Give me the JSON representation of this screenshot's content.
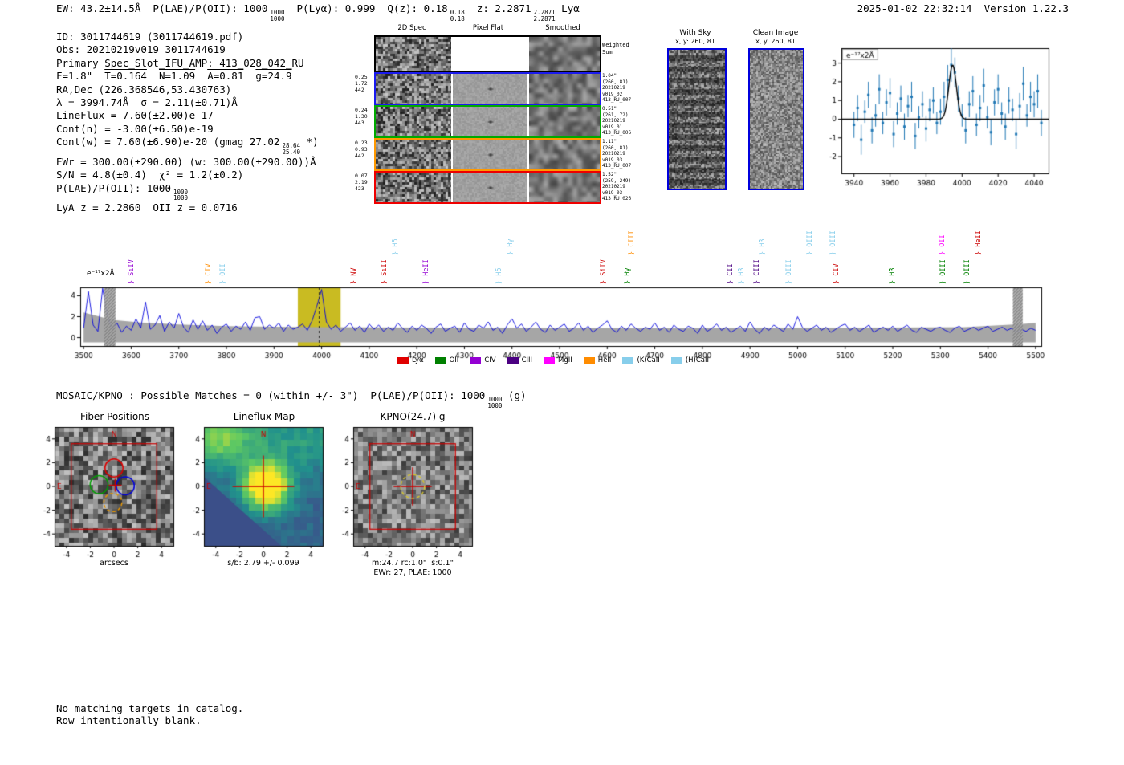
{
  "header": {
    "ew": "EW: 43.2±14.5Å  ",
    "plae_label": "P(LAE)/P(OII): 1000",
    "plae_hi": "1000",
    "plae_lo": "1000",
    "plya": "  P(Lyα): 0.999  ",
    "qz": "Q(z): 0.18",
    "qz_hi": "0.18",
    "qz_lo": "0.18",
    "z": "  z: 2.2871",
    "z_hi": "2.2871",
    "z_lo": "2.2871",
    "line_type": " Lyα",
    "timestamp": "2025-01-02 22:32:14",
    "version": "Version 1.22.3"
  },
  "info": {
    "lines": [
      {
        "text": "ID: 3011744619 (3011744619.pdf)"
      },
      {
        "text": "Obs: 20210219v019_3011744619"
      },
      {
        "text": "Primary Spec_Slot_IFU_AMP: 413_028_042_RU"
      },
      {
        "parts": [
          {
            "t": "F=1.8\"  "
          },
          {
            "t": "T=0.164",
            "over": true
          },
          {
            "t": "  "
          },
          {
            "t": "N=1.09",
            "over": true
          },
          {
            "t": "  "
          },
          {
            "t": "A=0.81",
            "over": true
          },
          {
            "t": "  "
          },
          {
            "t": "g=24.9",
            "over": true
          }
        ]
      },
      {
        "text": "RA,Dec (226.368546,53.430763)"
      },
      {
        "text": "λ = 3994.74Å  σ = 2.11(±0.71)Å"
      },
      {
        "text": "LineFlux = 7.60(±2.00)e-17"
      },
      {
        "text": "Cont(n) = -3.00(±6.50)e-19"
      },
      {
        "pre": "Cont(w) = 7.60(±6.90)e-20 (gmag 27.02",
        "sup": "28.64",
        "sub": "25.40",
        "post": " *)"
      },
      {
        "text": "EWr = 300.00(±290.00) (w: 300.00(±290.00))Å"
      },
      {
        "text": "S/N = 4.8(±0.4)  χ² = 1.2(±0.2)"
      },
      {
        "pre": "P(LAE)/P(OII): 1000",
        "sup": "1000",
        "sub": "1000",
        "post": ""
      },
      {
        "text": "LyA z = 2.2860  OII z = 0.0716"
      }
    ]
  },
  "cutouts": {
    "col_titles": [
      "2D Spec",
      "Pixel Flat",
      "Smoothed"
    ],
    "weighted_label": [
      "Weighted",
      "Sum"
    ],
    "rows": [
      {
        "left": [
          "0.25",
          "1.72",
          "442"
        ],
        "right": [
          "1.04\"",
          "(260, 81)",
          "20210219",
          "v019_02",
          "413_RU_007"
        ],
        "color": "#1a1aee"
      },
      {
        "left": [
          "0.24",
          "1.30",
          "443"
        ],
        "right": [
          "0.51\"",
          "(261, 72)",
          "20210219",
          "v019_01",
          "413_RU_006"
        ],
        "color": "#00aa00"
      },
      {
        "left": [
          "0.23",
          "0.93",
          "442"
        ],
        "right": [
          "1.11\"",
          "(260, 81)",
          "20210219",
          "v019_03",
          "413_RU_007"
        ],
        "color": "#ff9900"
      },
      {
        "left": [
          "0.07",
          "2.19",
          "423"
        ],
        "right": [
          "1.52\"",
          "(259, 249)",
          "20210219",
          "v019_03",
          "413_RU_026"
        ],
        "color": "#ee0000"
      }
    ]
  },
  "with_sky": {
    "title": "With Sky",
    "subtitle": "x, y: 260, 81"
  },
  "clean": {
    "title": "Clean Image",
    "subtitle": "x, y: 260, 81"
  },
  "mosaic": {
    "pre": "MOSAIC/KPNO : Possible Matches = 0 (within +/- 3\")  P(LAE)/P(OII): 1000",
    "sup": "1000",
    "sub": "1000",
    "post": " (g)"
  },
  "footer": {
    "line1": "No matching targets in catalog.",
    "line2": "Row intentionally blank."
  },
  "chart_data": [
    {
      "id": "line_fit",
      "type": "scatter",
      "ylabel": "e⁻¹⁷x2Å",
      "xlim": [
        3933,
        4048
      ],
      "ylim": [
        -2.9,
        3.8
      ],
      "xticks": [
        3940,
        3960,
        3980,
        4000,
        4020,
        4040
      ],
      "yticks": [
        -2,
        -1,
        0,
        1,
        2,
        3
      ],
      "x_start": 3940,
      "x_step": 2,
      "y": [
        -0.3,
        0.6,
        -1.1,
        0.4,
        1.3,
        -0.6,
        0.2,
        1.6,
        -0.2,
        0.9,
        1.4,
        -0.8,
        0.3,
        1.1,
        -0.4,
        0.7,
        1.2,
        -0.9,
        0.1,
        0.8,
        -0.5,
        0.5,
        1.0,
        -0.2,
        0.4,
        1.2,
        2.1,
        2.9,
        2.5,
        1.1,
        0.2,
        -0.6,
        0.8,
        1.5,
        -0.3,
        0.6,
        1.8,
        0.1,
        -0.7,
        0.9,
        1.6,
        0.3,
        -0.4,
        1.0,
        0.5,
        -0.8,
        0.7,
        1.9,
        0.2,
        1.2,
        0.8,
        1.5,
        -0.2
      ],
      "yerr": [
        0.7,
        0.7,
        0.8,
        0.6,
        0.7,
        0.7,
        0.6,
        0.8,
        0.6,
        0.7,
        0.8,
        0.7,
        0.6,
        0.7,
        0.7,
        0.6,
        0.8,
        0.7,
        0.6,
        0.7,
        0.7,
        0.6,
        0.7,
        0.6,
        0.7,
        0.8,
        0.8,
        0.9,
        0.8,
        0.7,
        0.6,
        0.7,
        0.7,
        0.8,
        0.6,
        0.7,
        0.9,
        0.6,
        0.7,
        0.7,
        0.8,
        0.6,
        0.7,
        0.7,
        0.6,
        0.8,
        0.7,
        0.9,
        0.6,
        0.8,
        0.7,
        0.9,
        0.7
      ],
      "fit": {
        "center": 3994.74,
        "sigma": 2.11,
        "amp": 2.9,
        "baseline": 0
      },
      "point_color": "#1f77b4",
      "fit_color": "#000000"
    },
    {
      "id": "full_spectrum",
      "type": "line",
      "ylabel": "e⁻¹⁷x2Å",
      "xlim": [
        3493,
        5512
      ],
      "ylim": [
        -0.8,
        4.8
      ],
      "xticks": [
        3500,
        3600,
        3700,
        3800,
        3900,
        4000,
        4100,
        4200,
        4300,
        4400,
        4500,
        4600,
        4700,
        4800,
        4900,
        5000,
        5100,
        5200,
        5300,
        5400,
        5500
      ],
      "yticks": [
        0,
        2,
        4
      ],
      "x_start": 3500,
      "x_step": 10,
      "flux": [
        0.9,
        4.4,
        1.2,
        0.6,
        4.7,
        2.1,
        0.8,
        1.4,
        0.5,
        1.1,
        0.7,
        1.8,
        0.9,
        3.4,
        0.8,
        1.2,
        2.1,
        0.6,
        1.5,
        0.9,
        2.3,
        1.0,
        0.5,
        1.7,
        0.8,
        1.6,
        0.7,
        1.2,
        0.4,
        1.0,
        1.3,
        0.6,
        1.1,
        0.8,
        1.5,
        0.7,
        1.9,
        2.0,
        0.8,
        1.2,
        0.9,
        1.4,
        0.6,
        1.2,
        0.8,
        1.0,
        1.3,
        0.7,
        1.6,
        3.0,
        4.6,
        1.5,
        0.8,
        1.2,
        0.6,
        1.0,
        1.4,
        0.7,
        1.1,
        0.5,
        1.3,
        0.8,
        1.2,
        0.6,
        1.0,
        0.7,
        1.4,
        0.9,
        0.5,
        1.1,
        0.7,
        1.2,
        0.9,
        0.4,
        1.0,
        1.3,
        0.6,
        0.9,
        1.1,
        0.5,
        1.4,
        0.8,
        0.6,
        1.2,
        0.9,
        1.5,
        0.7,
        1.0,
        0.4,
        1.2,
        1.8,
        0.9,
        1.3,
        0.6,
        1.0,
        1.5,
        0.8,
        0.5,
        1.2,
        0.7,
        1.0,
        1.3,
        0.6,
        0.9,
        1.4,
        0.7,
        1.1,
        0.5,
        0.9,
        1.2,
        1.6,
        0.8,
        0.5,
        1.1,
        0.7,
        1.3,
        0.9,
        0.6,
        1.0,
        0.8,
        1.4,
        0.7,
        1.0,
        0.5,
        1.2,
        0.8,
        0.6,
        1.1,
        0.9,
        0.4,
        1.2,
        0.6,
        0.9,
        1.3,
        0.7,
        1.0,
        0.5,
        0.8,
        1.1,
        0.6,
        1.5,
        0.8,
        0.4,
        1.0,
        0.7,
        1.2,
        0.9,
        0.6,
        1.3,
        0.8,
        2.0,
        1.0,
        0.6,
        0.9,
        1.2,
        0.7,
        1.0,
        0.5,
        0.8,
        1.1,
        1.3,
        0.7,
        1.0,
        0.6,
        0.9,
        1.2,
        0.5,
        0.8,
        1.0,
        0.7,
        1.1,
        0.6,
        0.9,
        1.2,
        0.7,
        0.5,
        1.0,
        0.8,
        0.6,
        0.9,
        1.0,
        0.7,
        0.5,
        0.9,
        1.1,
        0.6,
        0.8,
        1.0,
        0.7,
        0.9,
        1.1,
        0.6,
        0.8,
        1.0,
        0.7,
        0.9,
        0.5,
        0.8,
        0.6,
        0.9,
        0.7
      ],
      "band_lo": -0.45,
      "band_hi": [
        {
          "x": 3500,
          "v": 2.4
        },
        {
          "x": 3560,
          "v": 1.7
        },
        {
          "x": 3620,
          "v": 1.45
        },
        {
          "x": 3700,
          "v": 1.25
        },
        {
          "x": 3800,
          "v": 1.1
        },
        {
          "x": 3900,
          "v": 1.05
        },
        {
          "x": 4000,
          "v": 1.0
        },
        {
          "x": 4300,
          "v": 0.95
        },
        {
          "x": 4700,
          "v": 0.9
        },
        {
          "x": 5100,
          "v": 0.95
        },
        {
          "x": 5350,
          "v": 1.0
        },
        {
          "x": 5470,
          "v": 1.3
        },
        {
          "x": 5500,
          "v": 1.4
        }
      ],
      "highlight_band": {
        "x0": 3950,
        "x1": 4040,
        "color": "#c9bb22"
      },
      "hatch_bands": [
        [
          3543,
          3567
        ],
        [
          5452,
          5473
        ]
      ],
      "marker_line": 3994.74,
      "line_color": "#0000dd",
      "legend": [
        {
          "label": "Lyα",
          "color": "#e00000"
        },
        {
          "label": "OII",
          "color": "#008000"
        },
        {
          "label": "CIV",
          "color": "#9400d3"
        },
        {
          "label": "CIII",
          "color": "#4b0082"
        },
        {
          "label": "MgII",
          "color": "#ff00ff"
        },
        {
          "label": "HeII",
          "color": "#ff8c00"
        },
        {
          "label": "(K)CaII",
          "color": "#87ceeb"
        },
        {
          "label": "(H)CaII",
          "color": "#87ceeb"
        }
      ],
      "line_labels": [
        {
          "t": "SiIV",
          "x": 3610,
          "c": "#9400d3",
          "lvl": 0
        },
        {
          "t": "CIV",
          "x": 3772,
          "c": "#ff8c00",
          "lvl": 0
        },
        {
          "t": "OII",
          "x": 3802,
          "c": "#87ceeb",
          "lvl": 0
        },
        {
          "t": "NV",
          "x": 4077,
          "c": "#cc0000",
          "lvl": 0
        },
        {
          "t": "SiII",
          "x": 4141,
          "c": "#cc0000",
          "lvl": 0
        },
        {
          "t": "Hδ",
          "x": 4164,
          "c": "#87ceeb",
          "lvl": 1
        },
        {
          "t": "HeII",
          "x": 4229,
          "c": "#9400d3",
          "lvl": 0
        },
        {
          "t": "Hδ",
          "x": 4382,
          "c": "#87ceeb",
          "lvl": 0
        },
        {
          "t": "Hγ",
          "x": 4406,
          "c": "#87ceeb",
          "lvl": 1
        },
        {
          "t": "SiIV",
          "x": 4601,
          "c": "#cc0000",
          "lvl": 0
        },
        {
          "t": "Hγ",
          "x": 4651,
          "c": "#008000",
          "lvl": 0
        },
        {
          "t": "CIII",
          "x": 4660,
          "c": "#ff8c00",
          "lvl": 1
        },
        {
          "t": "CII",
          "x": 4867,
          "c": "#4b0082",
          "lvl": 0
        },
        {
          "t": "Hβ",
          "x": 4892,
          "c": "#87ceeb",
          "lvl": 0
        },
        {
          "t": "CIII",
          "x": 4923,
          "c": "#4b0082",
          "lvl": 0
        },
        {
          "t": "Hβ",
          "x": 4935,
          "c": "#87ceeb",
          "lvl": 1
        },
        {
          "t": "OIII",
          "x": 4990,
          "c": "#87ceeb",
          "lvl": 0
        },
        {
          "t": "OIII",
          "x": 5034,
          "c": "#87ceeb",
          "lvl": 1
        },
        {
          "t": "OIII",
          "x": 5083,
          "c": "#87ceeb",
          "lvl": 1
        },
        {
          "t": "CIV",
          "x": 5090,
          "c": "#cc0000",
          "lvl": 0
        },
        {
          "t": "Hβ",
          "x": 5209,
          "c": "#008000",
          "lvl": 0
        },
        {
          "t": "OII",
          "x": 5313,
          "c": "#ff00ff",
          "lvl": 1
        },
        {
          "t": "OIII",
          "x": 5314,
          "c": "#008000",
          "lvl": 0
        },
        {
          "t": "OIII",
          "x": 5366,
          "c": "#008000",
          "lvl": 0
        },
        {
          "t": "HeII",
          "x": 5389,
          "c": "#cc0000",
          "lvl": 1
        }
      ]
    },
    {
      "id": "maps",
      "type": "heatmap",
      "ticks": [
        -4,
        -2,
        0,
        2,
        4
      ],
      "lim": [
        -5,
        5
      ],
      "compass_n": "N",
      "compass_e": "E",
      "fiber": {
        "title": "Fiber Positions",
        "xlabel": "arcsecs",
        "square": 3.6,
        "circles": [
          {
            "x": 0.0,
            "y": 1.55,
            "r": 0.76,
            "c": "#dd0000",
            "dash": false
          },
          {
            "x": -1.25,
            "y": 0.15,
            "r": 0.76,
            "c": "#00a000",
            "dash": false
          },
          {
            "x": 0.95,
            "y": 0.05,
            "r": 0.76,
            "c": "#0000dd",
            "dash": false
          },
          {
            "x": -0.1,
            "y": -1.35,
            "r": 0.76,
            "c": "#e69500",
            "dash": true
          }
        ]
      },
      "lineflux": {
        "title": "Lineflux Map",
        "caption": "s/b: 2.79 +/- 0.099",
        "crosshair": 2.6
      },
      "kpno": {
        "title": "KPNO(24.7) g",
        "caption1": "m:24.7 rc:1.0\"  s:0.1\"",
        "caption2": "EWr: 27, PLAE: 1000",
        "square": 3.6,
        "crosshair": 1.6,
        "circle": {
          "r": 1.0,
          "c": "#d4c430"
        }
      }
    }
  ]
}
